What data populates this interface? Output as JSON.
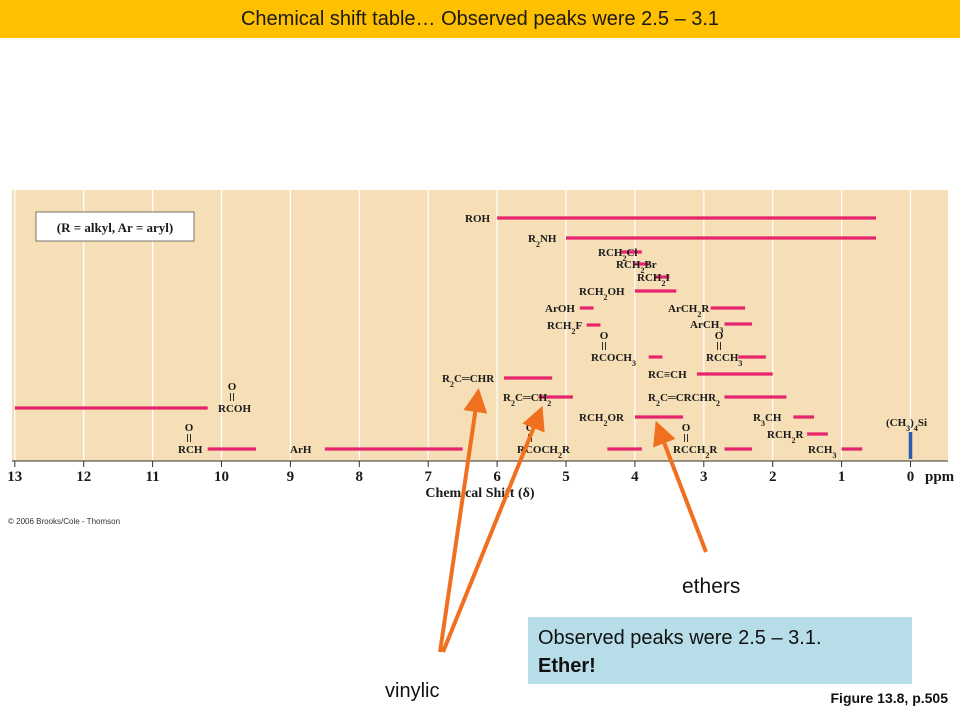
{
  "slide": {
    "title": "Chemical shift table… Observed peaks were 2.5 – 3.1",
    "credit": "© 2006 Brooks/Cole - Thomson",
    "ethers_label": "ethers",
    "vinylic_label": "vinylic",
    "note_line1": "Observed peaks were 2.5 – 3.1.",
    "note_line2": "Ether!",
    "figure_ref": "Figure 13.8, p.505"
  },
  "colors": {
    "title_bg": "#ffc000",
    "panel_bg": "#f6dfb6",
    "range_bar": "#e5246e",
    "tms_bar": "#2a5db0",
    "arrow": "#f07020",
    "note_bg": "#b7dde8"
  },
  "chart_data": {
    "type": "range",
    "note": "(R = alkyl, Ar = aryl)",
    "xlabel": "Chemical Shift (δ)",
    "unit": "ppm",
    "xlim": [
      13,
      0
    ],
    "ticks": [
      "13",
      "12",
      "11",
      "10",
      "9",
      "8",
      "7",
      "6",
      "5",
      "4",
      "3",
      "2",
      "1",
      "0"
    ],
    "tms_label": "(CH3)4Si",
    "tms_value": 0,
    "ranges": [
      {
        "label": "ROH",
        "from": 6.0,
        "to": 0.5
      },
      {
        "label": "R2NH",
        "from": 5.0,
        "to": 0.5
      },
      {
        "label": "RCH2Cl",
        "from": 4.2,
        "to": 3.9
      },
      {
        "label": "RCH2Br",
        "from": 4.0,
        "to": 3.8
      },
      {
        "label": "RCH2I",
        "from": 3.7,
        "to": 3.5
      },
      {
        "label": "RCH2OH",
        "from": 4.0,
        "to": 3.4
      },
      {
        "label": "ArOH",
        "from": 4.8,
        "to": 4.6
      },
      {
        "label": "RCH2F",
        "from": 4.7,
        "to": 4.5
      },
      {
        "label": "RCOCH3",
        "from": 3.8,
        "to": 3.6
      },
      {
        "label": "ArCH2R",
        "from": 2.9,
        "to": 2.4
      },
      {
        "label": "ArCH3",
        "from": 2.7,
        "to": 2.3
      },
      {
        "label": "RCCH3",
        "from": 2.5,
        "to": 2.1
      },
      {
        "label": "RC≡CH",
        "from": 3.1,
        "to": 2.0
      },
      {
        "label": "R2C=CHR",
        "from": 5.9,
        "to": 5.2
      },
      {
        "label": "R2C=CH2",
        "from": 5.4,
        "to": 4.9
      },
      {
        "label": "R2C=CRCHR2",
        "from": 2.7,
        "to": 1.8
      },
      {
        "label": "RCH2OR",
        "from": 4.0,
        "to": 3.3
      },
      {
        "label": "R3CH",
        "from": 1.7,
        "to": 1.4
      },
      {
        "label": "RCH2R",
        "from": 1.5,
        "to": 1.2
      },
      {
        "label": "RCH3",
        "from": 1.0,
        "to": 0.7
      },
      {
        "label": "RCOCH2R",
        "from": 4.4,
        "to": 3.9
      },
      {
        "label": "RCCH2R",
        "from": 2.7,
        "to": 2.3
      },
      {
        "label": "ArH",
        "from": 8.5,
        "to": 6.5
      },
      {
        "label": "RCOH",
        "from": 13.0,
        "to": 10.2
      },
      {
        "label": "RCH",
        "from": 10.2,
        "to": 9.5
      }
    ]
  }
}
